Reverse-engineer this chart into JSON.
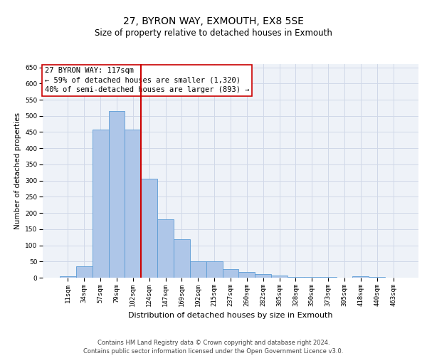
{
  "title": "27, BYRON WAY, EXMOUTH, EX8 5SE",
  "subtitle": "Size of property relative to detached houses in Exmouth",
  "xlabel": "Distribution of detached houses by size in Exmouth",
  "ylabel": "Number of detached properties",
  "categories": [
    "11sqm",
    "34sqm",
    "57sqm",
    "79sqm",
    "102sqm",
    "124sqm",
    "147sqm",
    "169sqm",
    "192sqm",
    "215sqm",
    "237sqm",
    "260sqm",
    "282sqm",
    "305sqm",
    "328sqm",
    "350sqm",
    "373sqm",
    "395sqm",
    "418sqm",
    "440sqm",
    "463sqm"
  ],
  "values": [
    5,
    35,
    458,
    515,
    458,
    305,
    180,
    118,
    50,
    50,
    27,
    18,
    10,
    7,
    3,
    3,
    2,
    0,
    5,
    3,
    1
  ],
  "bar_color": "#aec6e8",
  "bar_edge_color": "#5b9bd5",
  "vline_x": 4.5,
  "vline_color": "#cc0000",
  "annotation_text": "27 BYRON WAY: 117sqm\n← 59% of detached houses are smaller (1,320)\n40% of semi-detached houses are larger (893) →",
  "annotation_box_color": "#ffffff",
  "annotation_box_edge_color": "#cc0000",
  "ylim": [
    0,
    660
  ],
  "yticks": [
    0,
    50,
    100,
    150,
    200,
    250,
    300,
    350,
    400,
    450,
    500,
    550,
    600,
    650
  ],
  "grid_color": "#d0d8e8",
  "bg_color": "#eef2f8",
  "footer_line1": "Contains HM Land Registry data © Crown copyright and database right 2024.",
  "footer_line2": "Contains public sector information licensed under the Open Government Licence v3.0.",
  "title_fontsize": 10,
  "subtitle_fontsize": 8.5,
  "xlabel_fontsize": 8,
  "ylabel_fontsize": 7.5,
  "tick_fontsize": 6.5,
  "annotation_fontsize": 7.5,
  "footer_fontsize": 6
}
